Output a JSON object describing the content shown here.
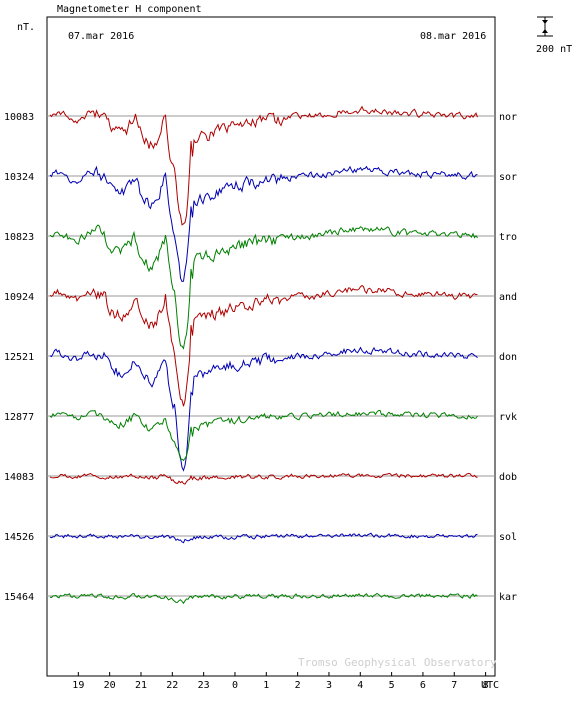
{
  "chart_data": {
    "type": "line",
    "title": "Magnetometer H component",
    "ylabel": "nT.",
    "date_left": "07.mar 2016",
    "date_right": "08.mar 2016",
    "scale_bar_label": "200 nT",
    "scale_bar_value_nT": 200,
    "xlabel": "UTC",
    "x_ticks": [
      "19",
      "20",
      "21",
      "22",
      "23",
      "0",
      "1",
      "2",
      "3",
      "4",
      "5",
      "6",
      "7",
      "8"
    ],
    "x_range_hours": [
      18.0,
      32.3
    ],
    "credit": "Tromso Geophysical Observatory",
    "colors": {
      "red": "#b00000",
      "blue": "#0000b4",
      "green": "#008000"
    },
    "series": [
      {
        "name": "nor",
        "baseline": "10083",
        "color": "red",
        "strength": 1.0,
        "dip": 1.0
      },
      {
        "name": "sor",
        "baseline": "10324",
        "color": "blue",
        "strength": 1.0,
        "dip": 0.95
      },
      {
        "name": "tro",
        "baseline": "10823",
        "color": "green",
        "strength": 1.05,
        "dip": 1.05
      },
      {
        "name": "and",
        "baseline": "10924",
        "color": "red",
        "strength": 1.05,
        "dip": 1.05
      },
      {
        "name": "don",
        "baseline": "12521",
        "color": "blue",
        "strength": 0.9,
        "dip": 1.2
      },
      {
        "name": "rvk",
        "baseline": "12877",
        "color": "green",
        "strength": 0.45,
        "dip": 0.35
      },
      {
        "name": "dob",
        "baseline": "14083",
        "color": "red",
        "strength": 0.08,
        "dip": 0.05
      },
      {
        "name": "sol",
        "baseline": "14526",
        "color": "blue",
        "strength": 0.06,
        "dip": 0.03
      },
      {
        "name": "kar",
        "baseline": "15464",
        "color": "green",
        "strength": 0.07,
        "dip": 0.04
      }
    ]
  }
}
